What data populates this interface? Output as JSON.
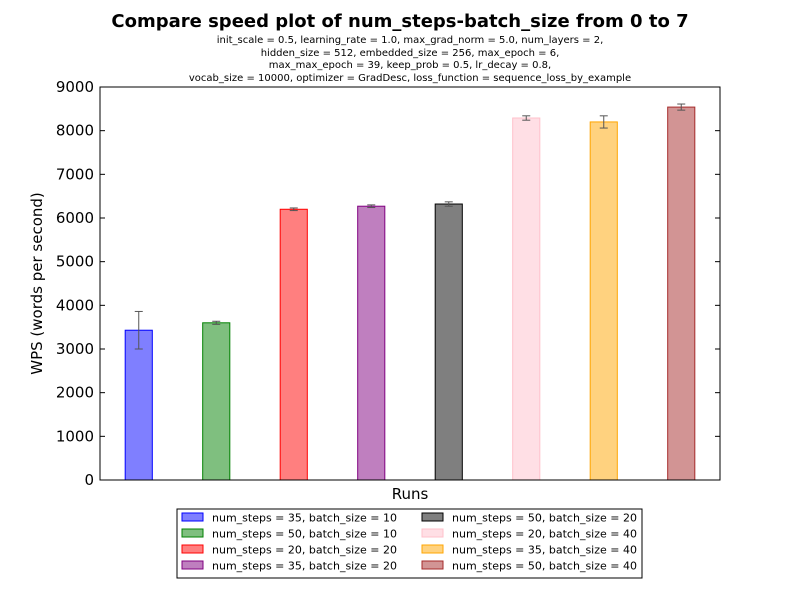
{
  "chart_data": {
    "type": "bar",
    "title": "Compare speed plot of num_steps-batch_size from 0 to 7",
    "subtitle_lines": [
      "init_scale = 0.5, learning_rate = 1.0, max_grad_norm = 5.0, num_layers = 2,",
      "hidden_size = 512, embedded_size = 256, max_epoch = 6,",
      "max_max_epoch = 39, keep_prob = 0.5, lr_decay = 0.8,",
      "vocab_size = 10000, optimizer = GradDesc, loss_function = sequence_loss_by_example"
    ],
    "xlabel": "Runs",
    "ylabel": "WPS (words per second)",
    "ylim": [
      0,
      9000
    ],
    "yticks": [
      0,
      1000,
      2000,
      3000,
      4000,
      5000,
      6000,
      7000,
      8000,
      9000
    ],
    "grid": false,
    "legend_position": "bottom-center",
    "series": [
      {
        "name": "num_steps = 35, batch_size = 10",
        "value": 3430,
        "error": 430,
        "color": "#0000ff"
      },
      {
        "name": "num_steps = 50, batch_size = 10",
        "value": 3600,
        "error": 35,
        "color": "#008000"
      },
      {
        "name": "num_steps = 20, batch_size = 20",
        "value": 6200,
        "error": 30,
        "color": "#ff0000"
      },
      {
        "name": "num_steps = 35, batch_size = 20",
        "value": 6270,
        "error": 30,
        "color": "#800080"
      },
      {
        "name": "num_steps = 50, batch_size = 20",
        "value": 6320,
        "error": 50,
        "color": "#000000"
      },
      {
        "name": "num_steps = 20, batch_size = 40",
        "value": 8290,
        "error": 50,
        "color": "#ffc0cb"
      },
      {
        "name": "num_steps = 35, batch_size = 40",
        "value": 8200,
        "error": 140,
        "color": "#ffa500"
      },
      {
        "name": "num_steps = 50, batch_size = 40",
        "value": 8540,
        "error": 70,
        "color": "#a52a2a"
      }
    ]
  }
}
